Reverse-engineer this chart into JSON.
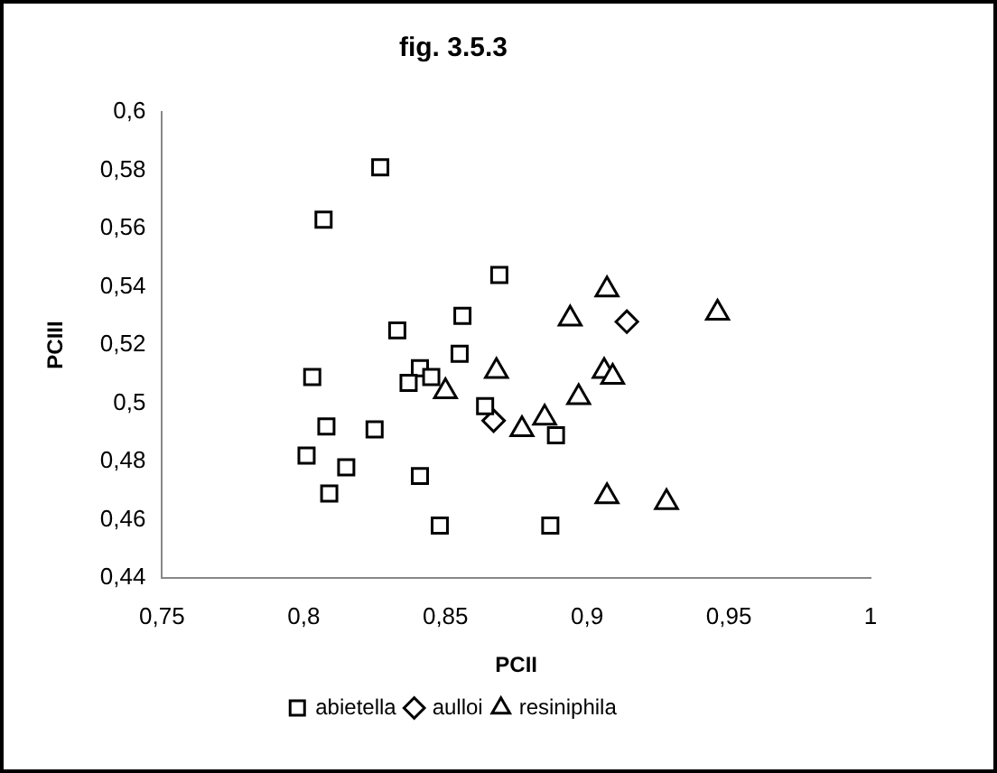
{
  "chart_data": {
    "type": "scatter",
    "title": "fig. 3.5.3",
    "xlabel": "PCII",
    "ylabel": "PCIII",
    "xlim": [
      0.75,
      1
    ],
    "xticks": [
      {
        "value": 0.75,
        "label": "0,75"
      },
      {
        "value": 0.8,
        "label": "0,8"
      },
      {
        "value": 0.85,
        "label": "0,85"
      },
      {
        "value": 0.9,
        "label": "0,9"
      },
      {
        "value": 0.95,
        "label": "0,95"
      },
      {
        "value": 1,
        "label": "1"
      }
    ],
    "ylim": [
      0.44,
      0.6
    ],
    "yticks": [
      {
        "value": 0.44,
        "label": "0,44"
      },
      {
        "value": 0.46,
        "label": "0,46"
      },
      {
        "value": 0.48,
        "label": "0,48"
      },
      {
        "value": 0.5,
        "label": "0,5"
      },
      {
        "value": 0.52,
        "label": "0,52"
      },
      {
        "value": 0.54,
        "label": "0,54"
      },
      {
        "value": 0.56,
        "label": "0,56"
      },
      {
        "value": 0.58,
        "label": "0,58"
      },
      {
        "value": 0.6,
        "label": "0,6"
      }
    ],
    "grid": false,
    "legend": "bottom",
    "series": [
      {
        "name": "abietella",
        "color": "#000000",
        "marker": "square",
        "x": [
          0.807,
          0.827,
          0.869,
          0.856,
          0.833,
          0.855,
          0.841,
          0.845,
          0.837,
          0.803,
          0.808,
          0.825,
          0.864,
          0.801,
          0.815,
          0.841,
          0.809,
          0.848,
          0.887,
          0.889
        ],
        "values": [
          0.563,
          0.581,
          0.544,
          0.53,
          0.525,
          0.517,
          0.512,
          0.509,
          0.507,
          0.509,
          0.492,
          0.491,
          0.499,
          0.482,
          0.478,
          0.475,
          0.469,
          0.458,
          0.458,
          0.489
        ]
      },
      {
        "name": "aulloi",
        "color": "#000000",
        "marker": "diamond",
        "x": [
          0.914,
          0.867
        ],
        "values": [
          0.528,
          0.494
        ]
      },
      {
        "name": "resiniphila",
        "color": "#000000",
        "marker": "triangle",
        "x": [
          0.907,
          0.894,
          0.946,
          0.868,
          0.906,
          0.909,
          0.897,
          0.877,
          0.885,
          0.85,
          0.907,
          0.928
        ],
        "values": [
          0.539,
          0.529,
          0.531,
          0.511,
          0.511,
          0.509,
          0.502,
          0.491,
          0.495,
          0.504,
          0.468,
          0.466
        ]
      }
    ]
  }
}
